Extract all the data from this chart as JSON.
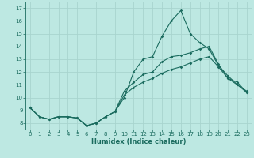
{
  "xlabel": "Humidex (Indice chaleur)",
  "background_color": "#bde8e2",
  "grid_color": "#a8d4ce",
  "line_color": "#1a6b5e",
  "xlim": [
    -0.5,
    23.5
  ],
  "ylim": [
    7.5,
    17.5
  ],
  "xticks": [
    0,
    1,
    2,
    3,
    4,
    5,
    6,
    7,
    8,
    9,
    10,
    11,
    12,
    13,
    14,
    15,
    16,
    17,
    18,
    19,
    20,
    21,
    22,
    23
  ],
  "yticks": [
    8,
    9,
    10,
    11,
    12,
    13,
    14,
    15,
    16,
    17
  ],
  "series": [
    [
      9.2,
      8.5,
      8.3,
      8.5,
      8.5,
      8.4,
      7.8,
      8.0,
      8.5,
      8.9,
      10.0,
      12.0,
      13.0,
      13.2,
      14.8,
      16.0,
      16.8,
      15.0,
      14.3,
      13.8,
      12.5,
      11.7,
      11.0,
      10.5
    ],
    [
      9.2,
      8.5,
      8.3,
      8.5,
      8.5,
      8.4,
      7.8,
      8.0,
      8.5,
      8.9,
      10.5,
      11.2,
      11.8,
      12.0,
      12.8,
      13.2,
      13.3,
      13.5,
      13.8,
      14.0,
      12.6,
      11.5,
      11.2,
      10.4
    ],
    [
      9.2,
      8.5,
      8.3,
      8.5,
      8.5,
      8.4,
      7.8,
      8.0,
      8.5,
      8.9,
      10.2,
      10.8,
      11.2,
      11.5,
      11.9,
      12.2,
      12.4,
      12.7,
      13.0,
      13.2,
      12.4,
      11.5,
      11.0,
      10.4
    ]
  ]
}
